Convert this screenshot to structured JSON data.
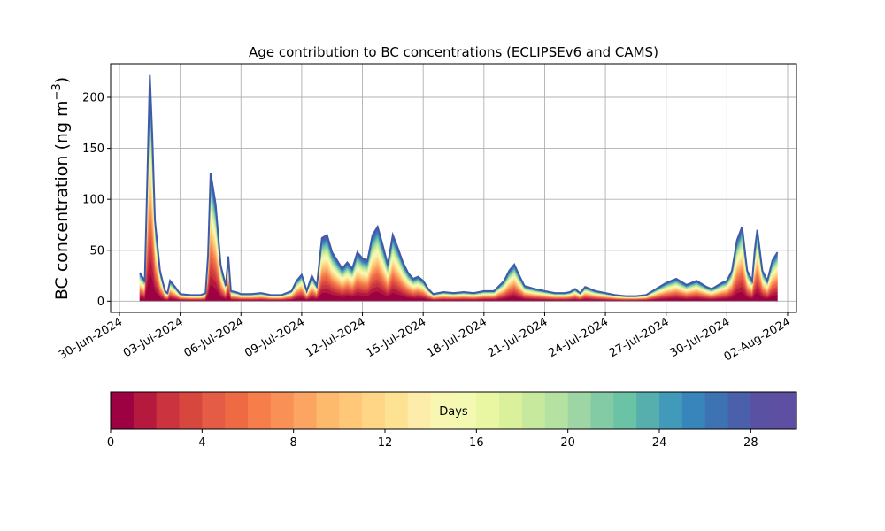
{
  "chart_data": {
    "type": "area",
    "title": "Age contribution to BC concentrations (ECLIPSEv6 and CAMS)",
    "ylabel": "BC concentration (ng m",
    "ylabel_sup": "−3",
    "ylabel_close": ")",
    "xlabel": "",
    "ylim": [
      -11,
      233
    ],
    "yticks": [
      0,
      50,
      100,
      150,
      200
    ],
    "xlim": [
      "2024-06-30T00:00",
      "2024-08-02T00:00"
    ],
    "xticks": [
      "30-Jun-2024",
      "03-Jul-2024",
      "06-Jul-2024",
      "09-Jul-2024",
      "12-Jul-2024",
      "15-Jul-2024",
      "18-Jul-2024",
      "21-Jul-2024",
      "24-Jul-2024",
      "27-Jul-2024",
      "30-Jul-2024",
      "02-Aug-2024"
    ],
    "grid": true,
    "stack_bands": 30,
    "x": [
      "2024-07-01T00:00",
      "2024-07-01T06:00",
      "2024-07-01T09:00",
      "2024-07-01T12:00",
      "2024-07-01T15:00",
      "2024-07-01T18:00",
      "2024-07-02T00:00",
      "2024-07-02T06:00",
      "2024-07-02T09:00",
      "2024-07-02T12:00",
      "2024-07-02T18:00",
      "2024-07-03T00:00",
      "2024-07-03T12:00",
      "2024-07-04T00:00",
      "2024-07-04T06:00",
      "2024-07-04T09:00",
      "2024-07-04T12:00",
      "2024-07-04T18:00",
      "2024-07-05T00:00",
      "2024-07-05T06:00",
      "2024-07-05T09:00",
      "2024-07-05T12:00",
      "2024-07-05T18:00",
      "2024-07-06T00:00",
      "2024-07-06T12:00",
      "2024-07-07T00:00",
      "2024-07-07T12:00",
      "2024-07-08T00:00",
      "2024-07-08T12:00",
      "2024-07-08T18:00",
      "2024-07-09T00:00",
      "2024-07-09T06:00",
      "2024-07-09T12:00",
      "2024-07-09T18:00",
      "2024-07-10T00:00",
      "2024-07-10T06:00",
      "2024-07-10T12:00",
      "2024-07-10T18:00",
      "2024-07-11T00:00",
      "2024-07-11T06:00",
      "2024-07-11T12:00",
      "2024-07-11T18:00",
      "2024-07-12T00:00",
      "2024-07-12T06:00",
      "2024-07-12T12:00",
      "2024-07-12T18:00",
      "2024-07-13T00:00",
      "2024-07-13T06:00",
      "2024-07-13T12:00",
      "2024-07-13T18:00",
      "2024-07-14T00:00",
      "2024-07-14T06:00",
      "2024-07-14T12:00",
      "2024-07-14T18:00",
      "2024-07-15T00:00",
      "2024-07-15T06:00",
      "2024-07-15T12:00",
      "2024-07-15T18:00",
      "2024-07-16T00:00",
      "2024-07-16T12:00",
      "2024-07-17T00:00",
      "2024-07-17T12:00",
      "2024-07-18T00:00",
      "2024-07-18T12:00",
      "2024-07-19T00:00",
      "2024-07-19T06:00",
      "2024-07-19T12:00",
      "2024-07-19T18:00",
      "2024-07-20T00:00",
      "2024-07-20T12:00",
      "2024-07-21T00:00",
      "2024-07-21T12:00",
      "2024-07-22T00:00",
      "2024-07-22T06:00",
      "2024-07-22T12:00",
      "2024-07-22T18:00",
      "2024-07-23T00:00",
      "2024-07-23T12:00",
      "2024-07-24T00:00",
      "2024-07-24T12:00",
      "2024-07-25T00:00",
      "2024-07-25T12:00",
      "2024-07-26T00:00",
      "2024-07-26T12:00",
      "2024-07-27T00:00",
      "2024-07-27T12:00",
      "2024-07-28T00:00",
      "2024-07-28T12:00",
      "2024-07-29T00:00",
      "2024-07-29T06:00",
      "2024-07-29T12:00",
      "2024-07-29T18:00",
      "2024-07-30T00:00",
      "2024-07-30T06:00",
      "2024-07-30T12:00",
      "2024-07-30T18:00",
      "2024-07-31T00:00",
      "2024-07-31T06:00",
      "2024-07-31T09:00",
      "2024-07-31T12:00",
      "2024-07-31T18:00",
      "2024-08-01T00:00",
      "2024-08-01T06:00",
      "2024-08-01T12:00"
    ],
    "total": [
      28,
      20,
      120,
      222,
      160,
      80,
      30,
      10,
      8,
      20,
      14,
      7,
      6,
      6,
      8,
      45,
      126,
      95,
      35,
      15,
      44,
      10,
      9,
      7,
      7,
      8,
      6,
      6,
      10,
      20,
      26,
      10,
      25,
      15,
      62,
      65,
      48,
      40,
      32,
      38,
      32,
      48,
      42,
      40,
      65,
      73,
      55,
      36,
      65,
      52,
      38,
      28,
      22,
      24,
      20,
      12,
      7,
      8,
      9,
      8,
      9,
      8,
      10,
      10,
      20,
      30,
      36,
      25,
      15,
      12,
      10,
      8,
      8,
      9,
      12,
      8,
      14,
      10,
      8,
      6,
      5,
      5,
      6,
      12,
      18,
      22,
      16,
      20,
      14,
      12,
      15,
      18,
      20,
      30,
      60,
      73,
      30,
      20,
      50,
      70,
      30,
      20,
      40,
      48
    ],
    "colorbar": {
      "label": "Days",
      "ticks": [
        0,
        4,
        8,
        12,
        16,
        20,
        24,
        28
      ],
      "max": 30,
      "colors": [
        "#9e0142",
        "#b5193e",
        "#cb333f",
        "#d8473e",
        "#e55c46",
        "#ee6a43",
        "#f57e4a",
        "#f99157",
        "#fca562",
        "#fdb96c",
        "#fec878",
        "#fed685",
        "#fee294",
        "#fdedaa",
        "#f7f7b1",
        "#f3f9b0",
        "#e9f6a2",
        "#daf09b",
        "#c7e99e",
        "#b5e1a1",
        "#9dd6a4",
        "#83cba4",
        "#6bc3a5",
        "#56afad",
        "#419aba",
        "#3885bb",
        "#3d72b3",
        "#4a60aa",
        "#5a51a2",
        "#5e4fa2"
      ]
    }
  }
}
